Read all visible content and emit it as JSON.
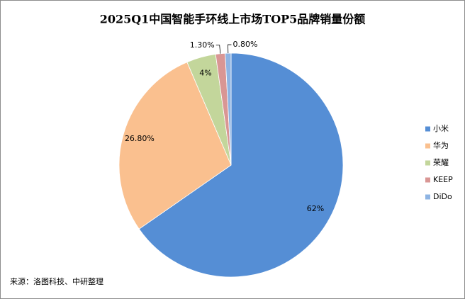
{
  "chart_data": {
    "type": "pie",
    "title": "2025Q1中国智能手环线上市场TOP5品牌销量份额",
    "categories": [
      "小米",
      "华为",
      "荣耀",
      "KEEP",
      "DiDo"
    ],
    "values": [
      62,
      26.8,
      4,
      1.3,
      0.8
    ],
    "value_labels": [
      "62%",
      "26.80%",
      "4%",
      "1.30%",
      "0.80%"
    ],
    "colors": [
      "#558ed5",
      "#fac08f",
      "#c3d69b",
      "#d99694",
      "#8eb4e3"
    ],
    "legend": "right",
    "source": "来源：洛图科技、中研整理"
  }
}
